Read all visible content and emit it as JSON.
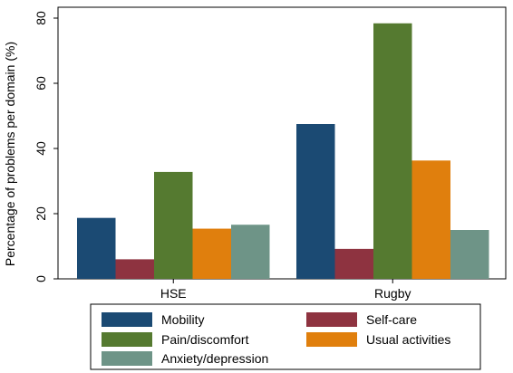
{
  "chart_data": {
    "type": "bar",
    "categories": [
      "HSE",
      "Rugby"
    ],
    "series": [
      {
        "name": "Mobility",
        "values": [
          18.7,
          47.5
        ],
        "color": "#1b4a73"
      },
      {
        "name": "Self-care",
        "values": [
          6.0,
          9.2
        ],
        "color": "#8e3340"
      },
      {
        "name": "Pain/discomfort",
        "values": [
          32.8,
          78.4
        ],
        "color": "#557a30"
      },
      {
        "name": "Usual activities",
        "values": [
          15.4,
          36.3
        ],
        "color": "#e07f0d"
      },
      {
        "name": "Anxiety/depression",
        "values": [
          16.6,
          15.0
        ],
        "color": "#6e9487"
      }
    ],
    "title": "",
    "xlabel": "",
    "ylabel": "Percentage of problems per domain (%)",
    "ylim": [
      0,
      85
    ],
    "yticks": [
      0,
      20,
      40,
      60,
      80
    ],
    "grid": false,
    "legend_position": "bottom"
  }
}
